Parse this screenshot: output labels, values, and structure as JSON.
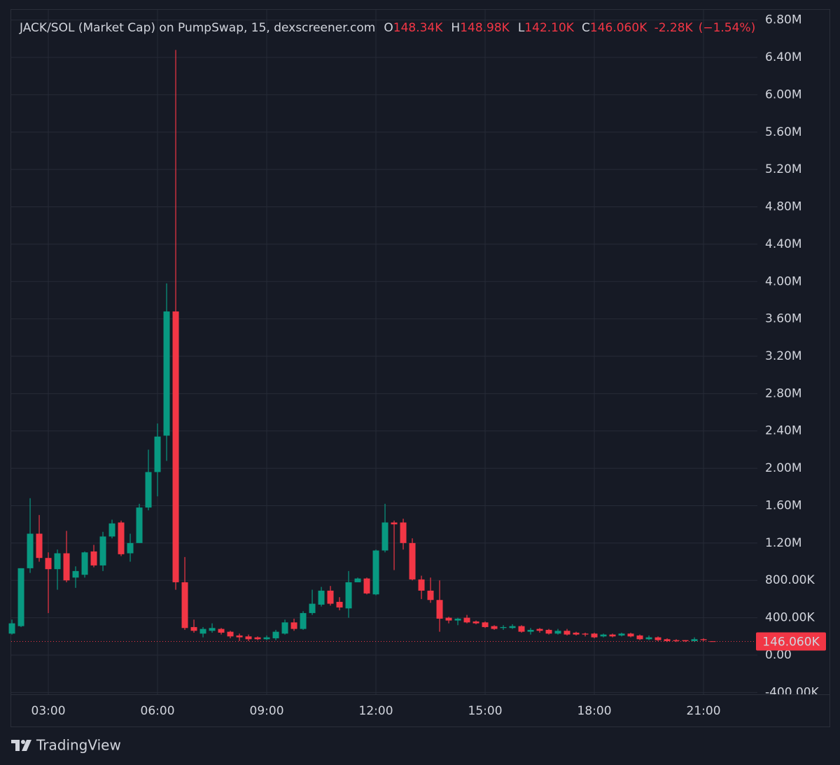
{
  "chart_data": {
    "type": "candlestick",
    "title": "JACK/SOL (Market Cap) on PumpSwap, 15, dexscreener.com",
    "ohlc_legend": {
      "labels": [
        "O",
        "H",
        "L",
        "C"
      ],
      "values": [
        148340,
        148980,
        142100,
        146060
      ],
      "value_labels": [
        "148.34K",
        "148.98K",
        "142.10K",
        "146.060K"
      ],
      "change": -2280,
      "change_label": "-2.28K",
      "change_pct": -1.54,
      "change_pct_label": "(−1.54%)"
    },
    "last_price": {
      "value": 146060,
      "label": "146.060K"
    },
    "up_color": "#089981",
    "down_color": "#f23645",
    "x": [
      2,
      2.25,
      2.5,
      2.75,
      3,
      3.25,
      3.5,
      3.75,
      4,
      4.25,
      4.5,
      4.75,
      5,
      5.25,
      5.5,
      5.75,
      6,
      6.25,
      6.5,
      6.75,
      7,
      7.25,
      7.5,
      7.75,
      8,
      8.25,
      8.5,
      8.75,
      9,
      9.25,
      9.5,
      9.75,
      10,
      10.25,
      10.5,
      10.75,
      11,
      11.25,
      11.5,
      11.75,
      12,
      12.25,
      12.5,
      12.75,
      13,
      13.25,
      13.5,
      13.75,
      14,
      14.25,
      14.5,
      14.75,
      15,
      15.25,
      15.5,
      15.75,
      16,
      16.25,
      16.5,
      16.75,
      17,
      17.25,
      17.5,
      17.75,
      18,
      18.25,
      18.5,
      18.75,
      19,
      19.25,
      19.5,
      19.75,
      20,
      20.25,
      20.5,
      20.75,
      21,
      21.25
    ],
    "open": [
      230000,
      310000,
      930000,
      1300000,
      1040000,
      920000,
      1090000,
      830000,
      860000,
      1110000,
      960000,
      1270000,
      1420000,
      1090000,
      1200000,
      1580000,
      1960000,
      2350000,
      3680000,
      780000,
      300000,
      230000,
      260000,
      280000,
      250000,
      210000,
      200000,
      190000,
      170000,
      180000,
      230000,
      350000,
      280000,
      450000,
      540000,
      690000,
      570000,
      500000,
      780000,
      820000,
      650000,
      1120000,
      1420000,
      1420000,
      1200000,
      810000,
      690000,
      590000,
      400000,
      370000,
      400000,
      360000,
      350000,
      310000,
      290000,
      290000,
      310000,
      250000,
      280000,
      270000,
      230000,
      260000,
      240000,
      230000,
      230000,
      200000,
      220000,
      210000,
      230000,
      210000,
      170000,
      190000,
      170000,
      160000,
      160000,
      150000,
      170000,
      148340
    ],
    "high": [
      380000,
      930000,
      1680000,
      1500000,
      1100000,
      1130000,
      1330000,
      950000,
      1110000,
      1180000,
      1320000,
      1450000,
      1440000,
      1300000,
      1620000,
      2200000,
      2480000,
      3980000,
      6480000,
      1050000,
      380000,
      300000,
      340000,
      290000,
      260000,
      230000,
      220000,
      200000,
      210000,
      270000,
      380000,
      390000,
      470000,
      700000,
      730000,
      740000,
      620000,
      900000,
      830000,
      830000,
      1130000,
      1620000,
      1440000,
      1460000,
      1250000,
      850000,
      830000,
      800000,
      410000,
      400000,
      430000,
      370000,
      360000,
      320000,
      320000,
      330000,
      320000,
      290000,
      290000,
      280000,
      280000,
      280000,
      250000,
      240000,
      240000,
      230000,
      230000,
      240000,
      240000,
      220000,
      210000,
      200000,
      180000,
      170000,
      160000,
      190000,
      180000,
      148980
    ],
    "low": [
      220000,
      300000,
      880000,
      1000000,
      450000,
      700000,
      780000,
      720000,
      830000,
      940000,
      900000,
      1250000,
      1060000,
      1000000,
      1200000,
      1550000,
      1700000,
      2080000,
      700000,
      270000,
      240000,
      190000,
      240000,
      220000,
      180000,
      150000,
      150000,
      160000,
      160000,
      160000,
      220000,
      260000,
      270000,
      430000,
      520000,
      530000,
      480000,
      400000,
      790000,
      650000,
      640000,
      1100000,
      910000,
      1130000,
      800000,
      600000,
      560000,
      250000,
      340000,
      320000,
      340000,
      330000,
      290000,
      270000,
      270000,
      280000,
      240000,
      220000,
      240000,
      220000,
      220000,
      210000,
      210000,
      200000,
      180000,
      190000,
      190000,
      200000,
      190000,
      160000,
      160000,
      150000,
      140000,
      140000,
      140000,
      140000,
      150000,
      142100
    ],
    "close": [
      340000,
      930000,
      1300000,
      1040000,
      920000,
      1090000,
      800000,
      900000,
      1100000,
      960000,
      1270000,
      1410000,
      1080000,
      1200000,
      1580000,
      1960000,
      2340000,
      3680000,
      780000,
      290000,
      260000,
      280000,
      290000,
      240000,
      200000,
      190000,
      170000,
      170000,
      190000,
      250000,
      350000,
      280000,
      450000,
      550000,
      690000,
      550000,
      510000,
      780000,
      820000,
      660000,
      1120000,
      1420000,
      1400000,
      1200000,
      810000,
      690000,
      590000,
      390000,
      370000,
      390000,
      350000,
      340000,
      300000,
      280000,
      300000,
      310000,
      250000,
      270000,
      260000,
      230000,
      260000,
      220000,
      220000,
      220000,
      190000,
      220000,
      200000,
      230000,
      200000,
      170000,
      190000,
      160000,
      150000,
      150000,
      150000,
      170000,
      160000,
      146060
    ],
    "xlim": [
      1.98,
      22.48
    ],
    "xticks": [
      {
        "value": 3,
        "label": "03:00"
      },
      {
        "value": 6,
        "label": "06:00"
      },
      {
        "value": 9,
        "label": "09:00"
      },
      {
        "value": 12,
        "label": "12:00"
      },
      {
        "value": 15,
        "label": "15:00"
      },
      {
        "value": 18,
        "label": "18:00"
      },
      {
        "value": 21,
        "label": "21:00"
      }
    ],
    "ylim": [
      -420000,
      6910000
    ],
    "yticks": [
      {
        "value": -400000,
        "label": "-400.00K"
      },
      {
        "value": 0,
        "label": "0.00"
      },
      {
        "value": 400000,
        "label": "400.00K"
      },
      {
        "value": 800000,
        "label": "800.00K"
      },
      {
        "value": 1200000,
        "label": "1.20M"
      },
      {
        "value": 1600000,
        "label": "1.60M"
      },
      {
        "value": 2000000,
        "label": "2.00M"
      },
      {
        "value": 2400000,
        "label": "2.40M"
      },
      {
        "value": 2800000,
        "label": "2.80M"
      },
      {
        "value": 3200000,
        "label": "3.20M"
      },
      {
        "value": 3600000,
        "label": "3.60M"
      },
      {
        "value": 4000000,
        "label": "4.00M"
      },
      {
        "value": 4400000,
        "label": "4.40M"
      },
      {
        "value": 4800000,
        "label": "4.80M"
      },
      {
        "value": 5200000,
        "label": "5.20M"
      },
      {
        "value": 5600000,
        "label": "5.60M"
      },
      {
        "value": 6000000,
        "label": "6.00M"
      },
      {
        "value": 6400000,
        "label": "6.40M"
      },
      {
        "value": 6800000,
        "label": "6.80M"
      }
    ],
    "grid": true
  },
  "footer_brand": "TradingView"
}
